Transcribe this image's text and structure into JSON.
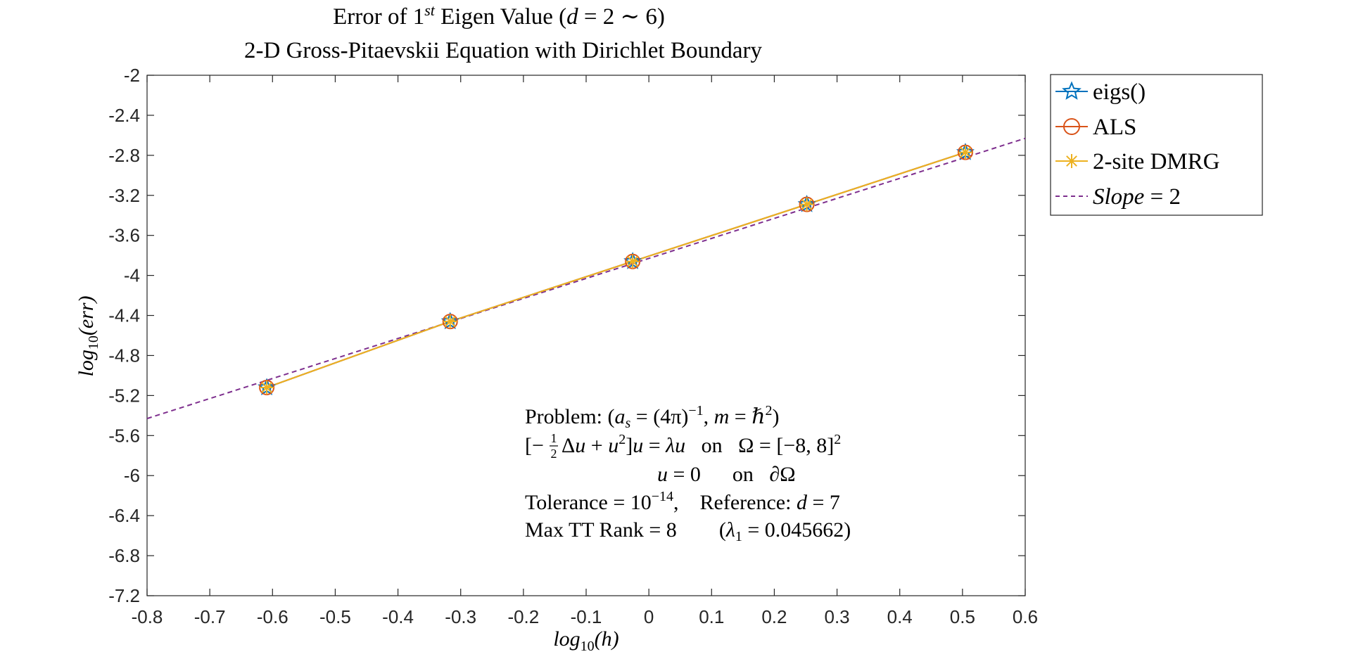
{
  "chart_data": {
    "type": "line",
    "title": {
      "line1_pre": "Error of 1",
      "line1_sup": "st",
      "line1_post": " Eigen Value (",
      "line1_d": "d",
      "line1_range": " = 2 ∼ 6)",
      "line2": "2-D Gross-Pitaevskii Equation with Dirichlet Boundary"
    },
    "xlabel": {
      "base": "log",
      "sub": "10",
      "arg": "(h)"
    },
    "ylabel": {
      "base": "log",
      "sub": "10",
      "arg": "(err)"
    },
    "xlim": [
      -0.8,
      0.6
    ],
    "ylim": [
      -7.2,
      -2
    ],
    "xticks": [
      -0.8,
      -0.7,
      -0.6,
      -0.5,
      -0.4,
      -0.3,
      -0.2,
      -0.1,
      0,
      0.1,
      0.2,
      0.3,
      0.4,
      0.5,
      0.6
    ],
    "xtick_labels": [
      "-0.8",
      "-0.7",
      "-0.6",
      "-0.5",
      "-0.4",
      "-0.3",
      "-0.2",
      "-0.1",
      "0",
      "0.1",
      "0.2",
      "0.3",
      "0.4",
      "0.5",
      "0.6"
    ],
    "yticks": [
      -2,
      -2.4,
      -2.8,
      -3.2,
      -3.6,
      -4,
      -4.4,
      -4.8,
      -5.2,
      -5.6,
      -6,
      -6.4,
      -6.8,
      -7.2
    ],
    "ytick_labels": [
      "-2",
      "-2.4",
      "-2.8",
      "-3.2",
      "-3.6",
      "-4",
      "-4.4",
      "-4.8",
      "-5.2",
      "-5.6",
      "-6",
      "-6.4",
      "-6.8",
      "-7.2"
    ],
    "grid": false,
    "legend_position": "outside-top-right",
    "series": [
      {
        "name": "eigs()",
        "color": "#0072BD",
        "marker": "star",
        "x": [
          -0.6092,
          -0.3168,
          -0.0258,
          0.2518,
          0.5046
        ],
        "y": [
          -5.12,
          -4.46,
          -3.86,
          -3.29,
          -2.77
        ]
      },
      {
        "name": "ALS",
        "color": "#D95319",
        "marker": "circle",
        "x": [
          -0.6092,
          -0.3168,
          -0.0258,
          0.2518,
          0.5046
        ],
        "y": [
          -5.12,
          -4.46,
          -3.86,
          -3.29,
          -2.77
        ]
      },
      {
        "name": "2-site DMRG",
        "color": "#EDB120",
        "marker": "asterisk",
        "x": [
          -0.6092,
          -0.3168,
          -0.0258,
          0.2518,
          0.5046
        ],
        "y": [
          -5.12,
          -4.46,
          -3.86,
          -3.29,
          -2.77
        ]
      },
      {
        "name_italic": "Slope",
        "name_rest": " = 2",
        "color": "#7E2F8E",
        "marker": "none",
        "dashed": true,
        "x": [
          -0.8,
          0.6
        ],
        "y": [
          -5.43,
          -2.63
        ]
      }
    ],
    "annotation": {
      "line1": {
        "prefix": "Problem:  (",
        "a": "a",
        "s": "s",
        "eq": " = (4π)",
        "exp": "−1",
        "mid": ",  ",
        "m": "m",
        "eq2": " = ℏ",
        "exp2": "2",
        "close": ")"
      },
      "line2": {
        "open": "[−",
        "frac_num": "1",
        "frac_den": "2",
        "delta": "Δ",
        "u1": "u",
        "plus": " + ",
        "u2": "u",
        "exp": "2",
        "close": "]",
        "u3": "u",
        "eq": " = ",
        "lam": "λ",
        "u4": "u",
        "on": "   on   ",
        "omega": "Ω = [−8, 8]",
        "exp2": "2"
      },
      "line3": {
        "u": "u",
        "eq": " = 0",
        "on": "      on   ",
        "bd": "∂Ω"
      },
      "line4": {
        "tol": "Tolerance = 10",
        "exp": "−14",
        "mid": ",    Reference: ",
        "d": "d",
        "eq": " = 7"
      },
      "line5": {
        "rank": "Max TT Rank = 8",
        "gap": "        (",
        "lam": "λ",
        "sub": "1",
        "eq": " = 0.045662)"
      }
    }
  }
}
